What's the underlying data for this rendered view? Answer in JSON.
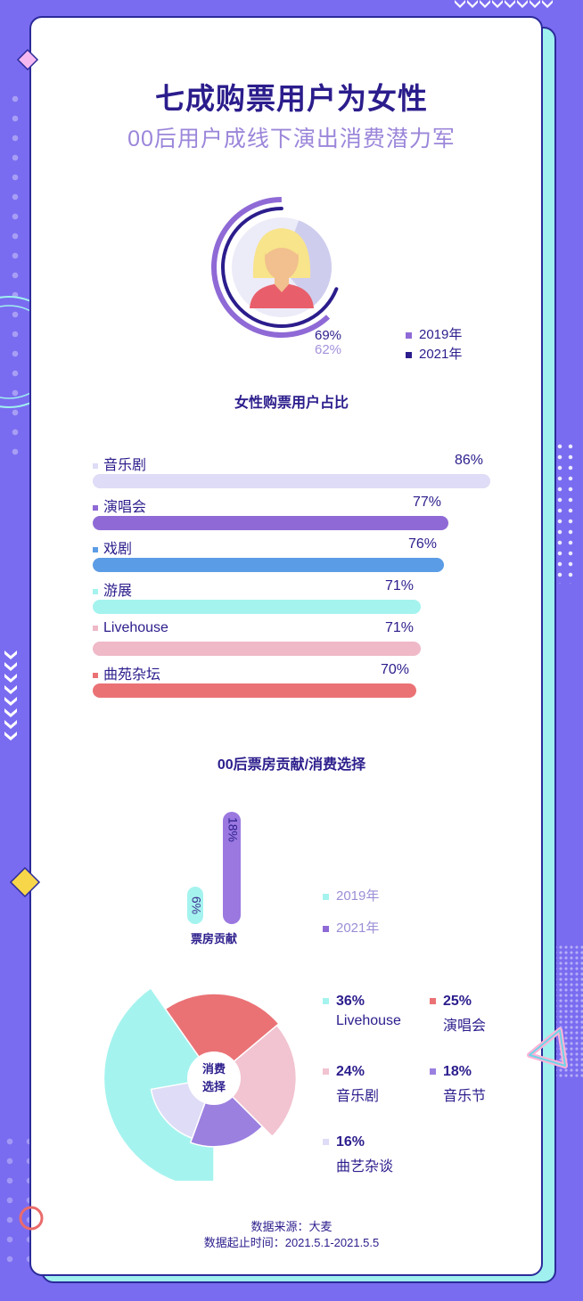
{
  "header": {
    "title": "七成购票用户为女性",
    "subtitle": "00后用户成线下演出消费潜力军"
  },
  "colors": {
    "dark": "#2b1d8c",
    "purple": "#8f6ad6",
    "lavender": "#dedcf6",
    "blue": "#5b9ce6",
    "cyan": "#a5f3ef",
    "pink": "#efb9c8",
    "red": "#ea7275",
    "light_pink": "#f2c3d0",
    "mid_purple": "#9b80e0"
  },
  "female_chart": {
    "title": "女性购票用户占比",
    "value_2021": "69%",
    "value_2019": "62%",
    "legend": [
      "2019年",
      "2021年"
    ],
    "chart_data": {
      "type": "donut",
      "series": [
        {
          "name": "2019年",
          "values": [
            62
          ]
        },
        {
          "name": "2021年",
          "values": [
            69
          ]
        }
      ]
    }
  },
  "category_bars": {
    "chart_data": {
      "type": "bar",
      "orientation": "horizontal",
      "categories": [
        "音乐剧",
        "演唱会",
        "戏剧",
        "游展",
        "Livehouse",
        "曲苑杂坛"
      ],
      "values": [
        86,
        77,
        76,
        71,
        71,
        70
      ],
      "labels": [
        "86%",
        "77%",
        "76%",
        "71%",
        "71%",
        "70%"
      ],
      "colors": [
        "#dedcf6",
        "#8f6ad6",
        "#5b9ce6",
        "#a5f3ef",
        "#efb9c8",
        "#ea7275"
      ]
    }
  },
  "youth_section": {
    "title": "00后票房贡献/消费选择",
    "boxoffice_label": "票房贡献",
    "legend": [
      "2019年",
      "2021年"
    ],
    "chart_data": {
      "type": "bar",
      "categories": [
        "票房贡献"
      ],
      "series": [
        {
          "name": "2019年",
          "values": [
            6
          ],
          "label": "6%"
        },
        {
          "name": "2021年",
          "values": [
            18
          ],
          "label": "18%"
        }
      ]
    }
  },
  "consumption": {
    "center_label_line1": "消费",
    "center_label_line2": "选择",
    "chart_data": {
      "type": "pie",
      "categories": [
        "Livehouse",
        "演唱会",
        "音乐剧",
        "音乐节",
        "曲艺杂谈"
      ],
      "values": [
        36,
        25,
        24,
        18,
        16
      ],
      "labels": [
        "36%",
        "25%",
        "24%",
        "18%",
        "16%"
      ],
      "colors": [
        "#a5f3ef",
        "#ea7275",
        "#f2c3d0",
        "#9b80e0",
        "#dedcf6"
      ]
    }
  },
  "footer": {
    "source": "数据来源：大麦",
    "period": "数据起止时间：2021.5.1-2021.5.5"
  }
}
